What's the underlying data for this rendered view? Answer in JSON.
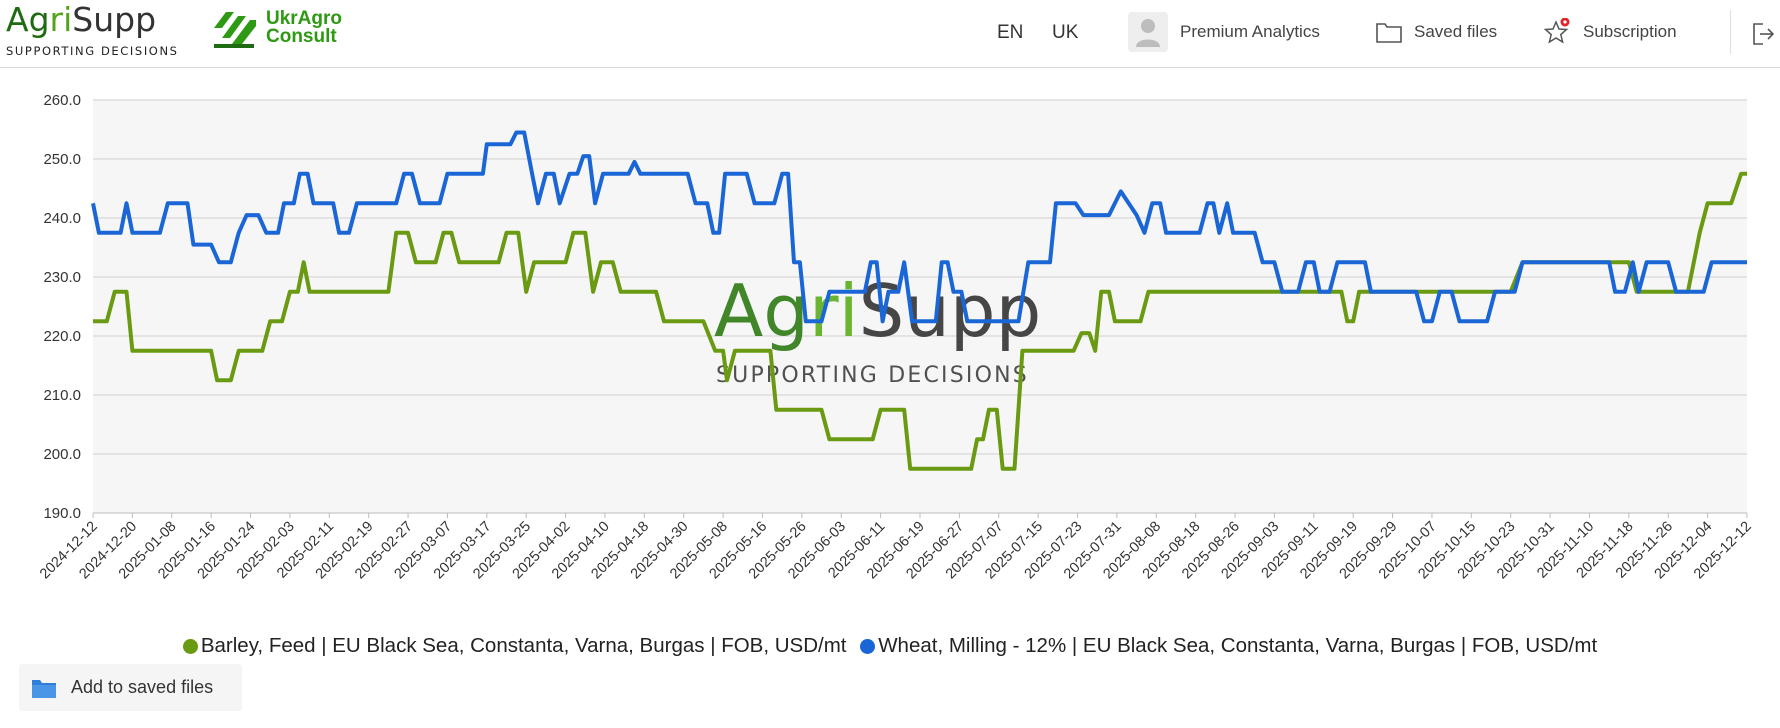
{
  "header": {
    "brand_name": "AgriSupp",
    "brand_tagline": "SUPPORTING DECISIONS",
    "partner_line1": "UkrAgro",
    "partner_line2": "Consult",
    "lang_en": "EN",
    "lang_uk": "UK",
    "premium_label": "Premium Analytics",
    "saved_files_label": "Saved files",
    "subscription_label": "Subscription"
  },
  "watermark": {
    "name": "AgriSupp",
    "tagline": "SUPPORTING DECISIONS"
  },
  "actions": {
    "add_saved_label": "Add to saved files"
  },
  "colors": {
    "barley": "#6a9a12",
    "wheat": "#1a66d6",
    "brand_dark_green": "#1f6b12",
    "brand_light_green": "#52a51a"
  },
  "chart_data": {
    "type": "line",
    "ylim": [
      190,
      260
    ],
    "y_ticks": [
      "190.0",
      "200.0",
      "210.0",
      "220.0",
      "230.0",
      "240.0",
      "250.0",
      "260.0"
    ],
    "grid": true,
    "legend_position": "bottom",
    "x_tick_labels": [
      "2024-12-12",
      "2024-12-20",
      "2025-01-08",
      "2025-01-16",
      "2025-01-24",
      "2025-02-03",
      "2025-02-11",
      "2025-02-19",
      "2025-02-27",
      "2025-03-07",
      "2025-03-17",
      "2025-03-25",
      "2025-04-02",
      "2025-04-10",
      "2025-04-18",
      "2025-04-30",
      "2025-05-08",
      "2025-05-16",
      "2025-05-26",
      "2025-06-03",
      "2025-06-11",
      "2025-06-19",
      "2025-06-27",
      "2025-07-07",
      "2025-07-15",
      "2025-07-23",
      "2025-07-31",
      "2025-08-08",
      "2025-08-18",
      "2025-08-26",
      "2025-09-03",
      "2025-09-11",
      "2025-09-19",
      "2025-09-29",
      "2025-10-07",
      "2025-10-15",
      "2025-10-23",
      "2025-10-31",
      "2025-11-10",
      "2025-11-18",
      "2025-11-26",
      "2025-12-04",
      "2025-12-12"
    ],
    "series": [
      {
        "name": "Barley, Feed | EU Black Sea, Constanta, Varna, Burgas | FOB, USD/mt",
        "color": "#6a9a12",
        "points": [
          [
            0,
            222.5
          ],
          [
            0.35,
            222.5
          ],
          [
            0.55,
            227.5
          ],
          [
            0.85,
            227.5
          ],
          [
            1.0,
            217.5
          ],
          [
            2.0,
            217.5
          ],
          [
            3.0,
            217.5
          ],
          [
            3.15,
            212.5
          ],
          [
            3.5,
            212.5
          ],
          [
            3.7,
            217.5
          ],
          [
            4.3,
            217.5
          ],
          [
            4.5,
            222.5
          ],
          [
            4.8,
            222.5
          ],
          [
            5.0,
            227.5
          ],
          [
            5.2,
            227.5
          ],
          [
            5.35,
            232.5
          ],
          [
            5.5,
            227.5
          ],
          [
            6.5,
            227.5
          ],
          [
            7.5,
            227.5
          ],
          [
            7.7,
            237.5
          ],
          [
            8.0,
            237.5
          ],
          [
            8.2,
            232.5
          ],
          [
            8.7,
            232.5
          ],
          [
            8.9,
            237.5
          ],
          [
            9.1,
            237.5
          ],
          [
            9.3,
            232.5
          ],
          [
            10.3,
            232.5
          ],
          [
            10.5,
            237.5
          ],
          [
            10.8,
            237.5
          ],
          [
            11.0,
            227.5
          ],
          [
            11.2,
            232.5
          ],
          [
            12.0,
            232.5
          ],
          [
            12.2,
            237.5
          ],
          [
            12.5,
            237.5
          ],
          [
            12.7,
            227.5
          ],
          [
            12.9,
            232.5
          ],
          [
            13.2,
            232.5
          ],
          [
            13.4,
            227.5
          ],
          [
            14.3,
            227.5
          ],
          [
            14.5,
            222.5
          ],
          [
            15.5,
            222.5
          ],
          [
            15.8,
            217.5
          ],
          [
            16.0,
            217.5
          ],
          [
            16.1,
            212.5
          ],
          [
            16.3,
            217.5
          ],
          [
            17.2,
            217.5
          ],
          [
            17.35,
            207.5
          ],
          [
            18.5,
            207.5
          ],
          [
            18.7,
            202.5
          ],
          [
            19.8,
            202.5
          ],
          [
            20.0,
            207.5
          ],
          [
            20.6,
            207.5
          ],
          [
            20.75,
            197.5
          ],
          [
            22.3,
            197.5
          ],
          [
            22.45,
            202.5
          ],
          [
            22.6,
            202.5
          ],
          [
            22.75,
            207.5
          ],
          [
            22.95,
            207.5
          ],
          [
            23.1,
            197.5
          ],
          [
            23.4,
            197.5
          ],
          [
            23.6,
            217.5
          ],
          [
            24.9,
            217.5
          ],
          [
            25.1,
            220.5
          ],
          [
            25.3,
            220.5
          ],
          [
            25.45,
            217.5
          ],
          [
            25.6,
            227.5
          ],
          [
            25.8,
            227.5
          ],
          [
            25.95,
            222.5
          ],
          [
            26.6,
            222.5
          ],
          [
            26.8,
            227.5
          ],
          [
            28.5,
            227.5
          ],
          [
            29.0,
            227.5
          ],
          [
            30.0,
            227.5
          ],
          [
            31.7,
            227.5
          ],
          [
            31.85,
            222.5
          ],
          [
            32.0,
            222.5
          ],
          [
            32.15,
            227.5
          ],
          [
            36.0,
            227.5
          ],
          [
            36.3,
            232.5
          ],
          [
            39.0,
            232.5
          ],
          [
            39.2,
            227.5
          ],
          [
            40.5,
            227.5
          ],
          [
            40.8,
            237.5
          ],
          [
            41.0,
            242.5
          ],
          [
            41.6,
            242.5
          ],
          [
            41.85,
            247.5
          ],
          [
            42.0,
            247.5
          ]
        ]
      },
      {
        "name": "Wheat, Milling - 12% | EU Black Sea, Constanta, Varna, Burgas | FOB, USD/mt",
        "color": "#1a66d6",
        "points": [
          [
            0,
            242.5
          ],
          [
            0.15,
            237.5
          ],
          [
            0.7,
            237.5
          ],
          [
            0.85,
            242.5
          ],
          [
            1.0,
            237.5
          ],
          [
            1.7,
            237.5
          ],
          [
            1.9,
            242.5
          ],
          [
            2.4,
            242.5
          ],
          [
            2.55,
            235.5
          ],
          [
            3.0,
            235.5
          ],
          [
            3.2,
            232.5
          ],
          [
            3.5,
            232.5
          ],
          [
            3.7,
            237.5
          ],
          [
            3.9,
            240.5
          ],
          [
            4.2,
            240.5
          ],
          [
            4.4,
            237.5
          ],
          [
            4.7,
            237.5
          ],
          [
            4.85,
            242.5
          ],
          [
            5.1,
            242.5
          ],
          [
            5.25,
            247.5
          ],
          [
            5.45,
            247.5
          ],
          [
            5.6,
            242.5
          ],
          [
            6.1,
            242.5
          ],
          [
            6.25,
            237.5
          ],
          [
            6.5,
            237.5
          ],
          [
            6.7,
            242.5
          ],
          [
            7.7,
            242.5
          ],
          [
            7.9,
            247.5
          ],
          [
            8.1,
            247.5
          ],
          [
            8.3,
            242.5
          ],
          [
            8.8,
            242.5
          ],
          [
            9.0,
            247.5
          ],
          [
            9.9,
            247.5
          ],
          [
            10.0,
            252.5
          ],
          [
            10.6,
            252.5
          ],
          [
            10.75,
            254.5
          ],
          [
            10.95,
            254.5
          ],
          [
            11.15,
            247.5
          ],
          [
            11.3,
            242.5
          ],
          [
            11.5,
            247.5
          ],
          [
            11.7,
            247.5
          ],
          [
            11.85,
            242.5
          ],
          [
            12.1,
            247.5
          ],
          [
            12.3,
            247.5
          ],
          [
            12.45,
            250.5
          ],
          [
            12.6,
            250.5
          ],
          [
            12.75,
            242.5
          ],
          [
            12.95,
            247.5
          ],
          [
            13.6,
            247.5
          ],
          [
            13.75,
            249.5
          ],
          [
            13.9,
            247.5
          ],
          [
            15.1,
            247.5
          ],
          [
            15.3,
            242.5
          ],
          [
            15.6,
            242.5
          ],
          [
            15.75,
            237.5
          ],
          [
            15.9,
            237.5
          ],
          [
            16.05,
            247.5
          ],
          [
            16.6,
            247.5
          ],
          [
            16.8,
            242.5
          ],
          [
            17.3,
            242.5
          ],
          [
            17.5,
            247.5
          ],
          [
            17.65,
            247.5
          ],
          [
            17.8,
            232.5
          ],
          [
            17.95,
            232.5
          ],
          [
            18.1,
            222.5
          ],
          [
            18.5,
            222.5
          ],
          [
            18.7,
            227.5
          ],
          [
            19.6,
            227.5
          ],
          [
            19.75,
            232.5
          ],
          [
            19.9,
            232.5
          ],
          [
            20.05,
            222.5
          ],
          [
            20.2,
            227.5
          ],
          [
            20.45,
            227.5
          ],
          [
            20.6,
            232.5
          ],
          [
            20.8,
            222.5
          ],
          [
            21.4,
            222.5
          ],
          [
            21.55,
            232.5
          ],
          [
            21.7,
            232.5
          ],
          [
            21.85,
            227.5
          ],
          [
            22.05,
            227.5
          ],
          [
            22.2,
            222.5
          ],
          [
            23.5,
            222.5
          ],
          [
            23.75,
            232.5
          ],
          [
            24.3,
            232.5
          ],
          [
            24.45,
            242.5
          ],
          [
            24.95,
            242.5
          ],
          [
            25.15,
            240.5
          ],
          [
            25.8,
            240.5
          ],
          [
            26.1,
            244.5
          ],
          [
            26.5,
            240.5
          ],
          [
            26.7,
            237.5
          ],
          [
            26.9,
            242.5
          ],
          [
            27.1,
            242.5
          ],
          [
            27.25,
            237.5
          ],
          [
            28.1,
            237.5
          ],
          [
            28.3,
            242.5
          ],
          [
            28.45,
            242.5
          ],
          [
            28.6,
            237.5
          ],
          [
            28.8,
            242.5
          ],
          [
            28.95,
            237.5
          ],
          [
            29.5,
            237.5
          ],
          [
            29.7,
            232.5
          ],
          [
            30.0,
            232.5
          ],
          [
            30.2,
            227.5
          ],
          [
            30.6,
            227.5
          ],
          [
            30.8,
            232.5
          ],
          [
            31.0,
            232.5
          ],
          [
            31.15,
            227.5
          ],
          [
            31.4,
            227.5
          ],
          [
            31.6,
            232.5
          ],
          [
            32.3,
            232.5
          ],
          [
            32.45,
            227.5
          ],
          [
            33.6,
            227.5
          ],
          [
            33.8,
            222.5
          ],
          [
            34.0,
            222.5
          ],
          [
            34.2,
            227.5
          ],
          [
            34.5,
            227.5
          ],
          [
            34.7,
            222.5
          ],
          [
            35.4,
            222.5
          ],
          [
            35.6,
            227.5
          ],
          [
            36.1,
            227.5
          ],
          [
            36.3,
            232.5
          ],
          [
            38.5,
            232.5
          ],
          [
            38.65,
            227.5
          ],
          [
            38.9,
            227.5
          ],
          [
            39.1,
            232.5
          ],
          [
            39.25,
            227.5
          ],
          [
            39.45,
            232.5
          ],
          [
            40.0,
            232.5
          ],
          [
            40.2,
            227.5
          ],
          [
            40.9,
            227.5
          ],
          [
            41.1,
            232.5
          ],
          [
            42.0,
            232.5
          ]
        ]
      }
    ]
  }
}
